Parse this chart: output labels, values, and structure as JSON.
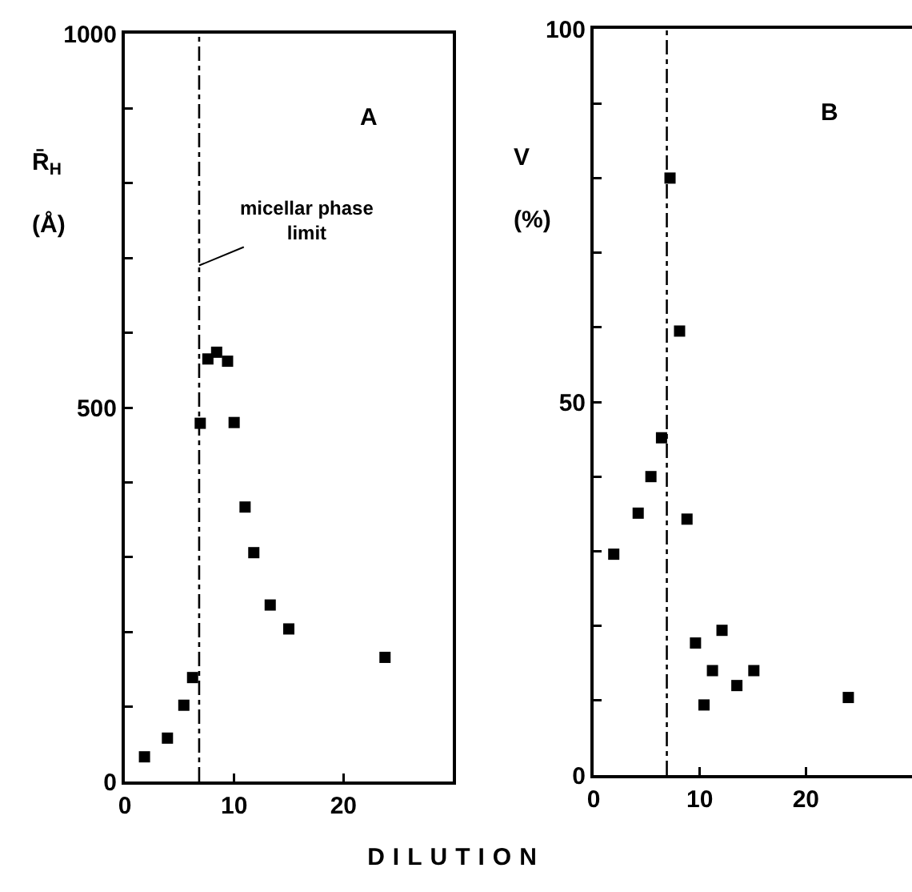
{
  "chart_data": [
    {
      "type": "scatter",
      "xlabel": "DILUTION",
      "ylabel": "R̄$_{H}$\n(Å)",
      "annotations": [
        "A",
        {
          "text": "micellar phase\nlimit",
          "x": 6.8,
          "y": 690
        }
      ],
      "marker": "square",
      "series": [
        {
          "color": "#000000",
          "x": [
            1.8,
            3.9,
            5.4,
            6.2,
            6.9,
            7.6,
            8.4,
            9.4,
            10.0,
            11.0,
            11.8,
            13.3,
            15.0,
            23.8
          ],
          "values": [
            33,
            58,
            102,
            139,
            479,
            565,
            574,
            562,
            480,
            367,
            306,
            236,
            204,
            166
          ]
        }
      ],
      "xlim": [
        0,
        30
      ],
      "xticks": [
        0,
        10,
        20
      ],
      "ylim": [
        0,
        1000
      ],
      "yticks": [
        0,
        {
          "value": 100,
          "label": null
        },
        {
          "value": 200,
          "label": null
        },
        {
          "value": 300,
          "label": null
        },
        {
          "value": 400,
          "label": null
        },
        500,
        {
          "value": 600,
          "label": null
        },
        {
          "value": 700,
          "label": null
        },
        {
          "value": 800,
          "label": null
        },
        {
          "value": 900,
          "label": null
        },
        1000
      ],
      "ref_lines": [
        {
          "axis": "x",
          "value": 6.8,
          "color": "#000000",
          "line_style": "dashed"
        }
      ]
    },
    {
      "type": "scatter",
      "ylabel": "V\n(%)",
      "annotations": [
        "B"
      ],
      "marker": "square",
      "series": [
        {
          "color": "#000000",
          "x": [
            1.9,
            4.2,
            5.4,
            6.4,
            7.2,
            8.1,
            8.8,
            9.6,
            10.4,
            11.2,
            12.1,
            13.5,
            15.1,
            24.0
          ],
          "values": [
            29.6,
            35.1,
            40,
            45.2,
            80,
            59.5,
            34.3,
            17.7,
            9.4,
            14,
            19.4,
            12,
            14,
            10.4
          ]
        }
      ],
      "xlim": [
        0,
        30
      ],
      "xticks": [
        0,
        10,
        20
      ],
      "ylim": [
        0,
        100
      ],
      "yticks": [
        0,
        {
          "value": 10,
          "label": null
        },
        {
          "value": 20,
          "label": null
        },
        {
          "value": 30,
          "label": null
        },
        {
          "value": 40,
          "label": null
        },
        50,
        {
          "value": 60,
          "label": null
        },
        {
          "value": 70,
          "label": null
        },
        {
          "value": 80,
          "label": null
        },
        {
          "value": 90,
          "label": null
        },
        100
      ],
      "ref_lines": [
        {
          "axis": "x",
          "value": 6.9,
          "color": "#000000",
          "line_style": "dashed"
        }
      ]
    }
  ]
}
